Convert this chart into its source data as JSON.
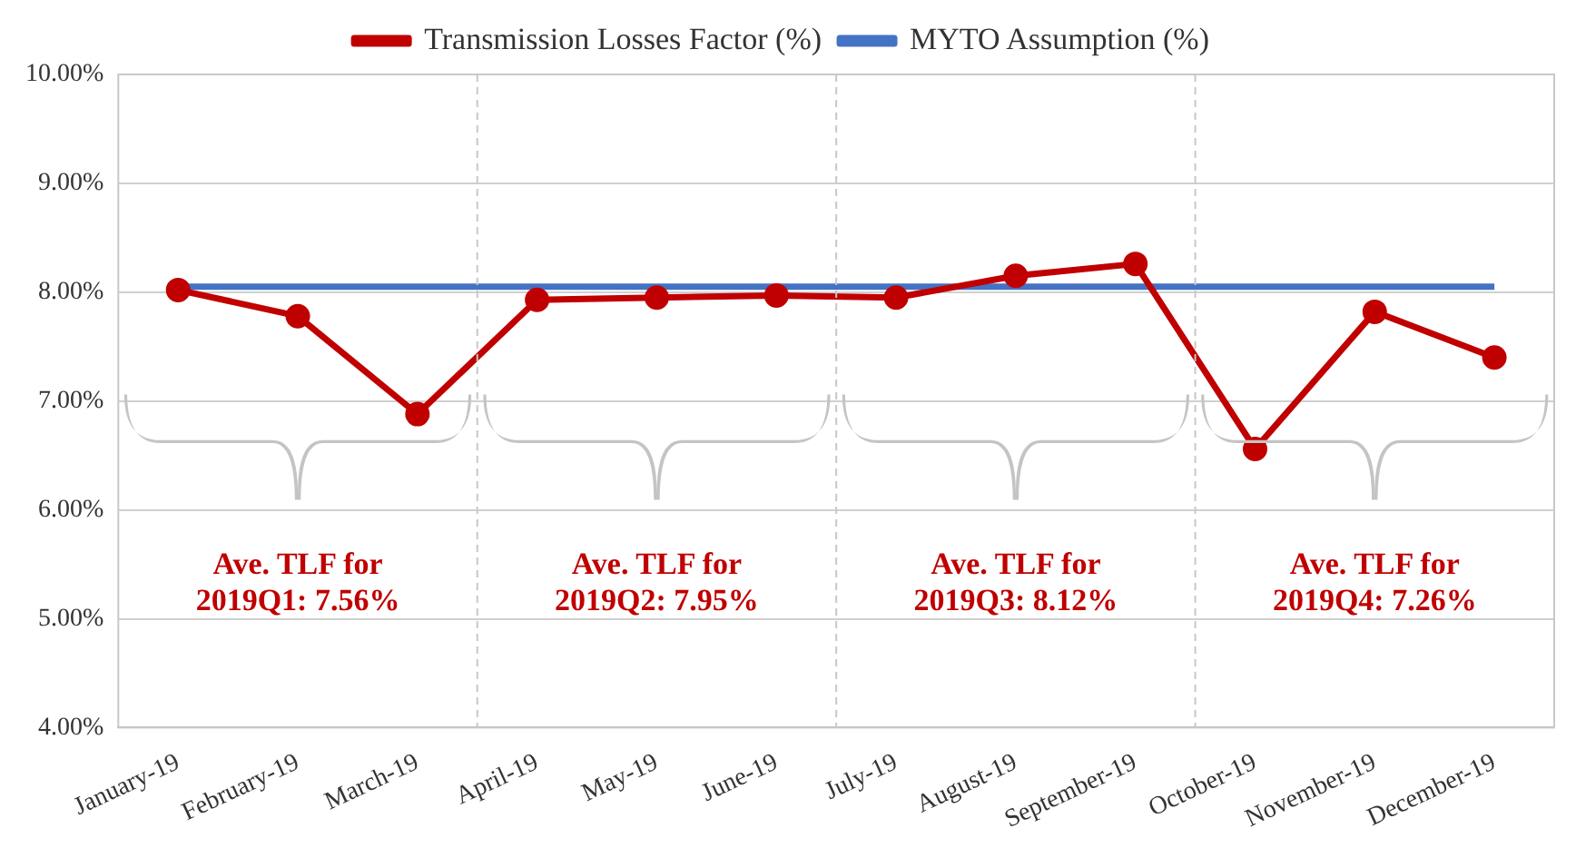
{
  "chart_data": {
    "type": "line",
    "categories": [
      "January-19",
      "February-19",
      "March-19",
      "April-19",
      "May-19",
      "June-19",
      "July-19",
      "August-19",
      "September-19",
      "October-19",
      "November-19",
      "December-19"
    ],
    "series": [
      {
        "name": "Transmission Losses Factor (%)",
        "color": "#c00000",
        "values": [
          8.02,
          7.78,
          6.88,
          7.93,
          7.95,
          7.97,
          7.95,
          8.15,
          8.26,
          6.56,
          7.82,
          7.4
        ],
        "marker": "circle"
      },
      {
        "name": "MYTO Assumption (%)",
        "color": "#4472c4",
        "values": [
          8.05,
          8.05,
          8.05,
          8.05,
          8.05,
          8.05,
          8.05,
          8.05,
          8.05,
          8.05,
          8.05,
          8.05
        ],
        "marker": "none"
      }
    ],
    "ylim": [
      4,
      10
    ],
    "yticks": [
      {
        "value": 4,
        "label": "4.00%"
      },
      {
        "value": 5,
        "label": "5.00%"
      },
      {
        "value": 6,
        "label": "6.00%"
      },
      {
        "value": 7,
        "label": "7.00%"
      },
      {
        "value": 8,
        "label": "8.00%"
      },
      {
        "value": 9,
        "label": "9.00%"
      },
      {
        "value": 10,
        "label": "10.00%"
      }
    ],
    "grid": "y",
    "legend": "top",
    "annotations": [
      "Ave. TLF for\n2019Q1: 7.56%",
      "Ave. TLF for\n2019Q2: 7.95%",
      "Ave. TLF for\n2019Q3: 8.12%",
      "Ave. TLF for\n2019Q4: 7.26%"
    ]
  }
}
